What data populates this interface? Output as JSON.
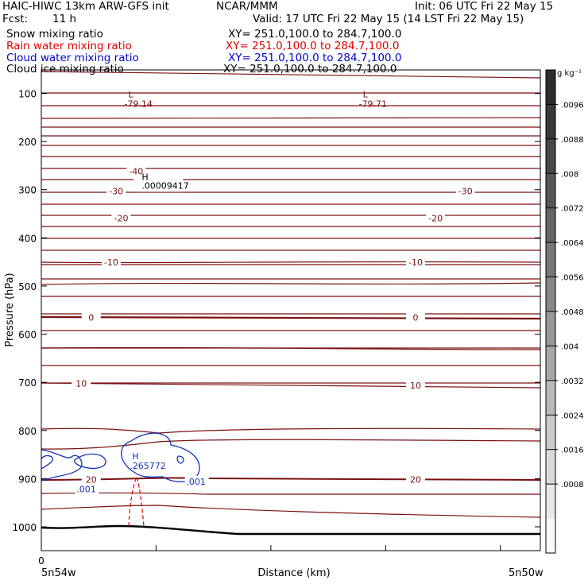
{
  "header": {
    "title": "HAIC-HIWC 13km ARW-GFS init",
    "org": "NCAR/MMM",
    "init": "Init: 06 UTC Fri 22 May 15",
    "fcst_label": "Fcst:",
    "fcst_value": "11 h",
    "valid": "Valid: 17 UTC Fri 22 May 15 (14 LST Fri 22 May 15)"
  },
  "fields": [
    {
      "name": "Snow mixing ratio",
      "xy": "XY= 251.0,100.0 to 284.7,100.0",
      "color": "#000000"
    },
    {
      "name": "Rain water mixing ratio",
      "xy": "XY= 251.0,100.0 to 284.7,100.0",
      "color": "#e00000"
    },
    {
      "name": "Cloud water mixing ratio",
      "xy": "XY= 251.0,100.0 to 284.7,100.0",
      "color": "#0000d0"
    },
    {
      "name": "Cloud ice mixing ratio",
      "xy": "XY= 251.0,100.0 to 284.7,100.0",
      "color": "#000000"
    }
  ],
  "chart_data": {
    "type": "contour",
    "ylabel": "Pressure (hPa)",
    "xlabel": "Distance (km)",
    "x_tick_label": "0",
    "x_left_label": "5n54w",
    "x_right_label": "5n50w",
    "y_ticks": [
      100,
      200,
      300,
      400,
      500,
      600,
      700,
      800,
      900,
      1000
    ],
    "ylim": [
      1050,
      50
    ],
    "temperature_contours": {
      "color": "#7a1010",
      "labels": [
        {
          "text": "-40",
          "x": 0.19,
          "p": 262
        },
        {
          "text": "-30",
          "x": 0.15,
          "p": 303
        },
        {
          "text": "-30",
          "x": 0.85,
          "p": 303
        },
        {
          "text": "-20",
          "x": 0.16,
          "p": 359
        },
        {
          "text": "-20",
          "x": 0.79,
          "p": 359
        },
        {
          "text": "-10",
          "x": 0.14,
          "p": 451
        },
        {
          "text": "-10",
          "x": 0.75,
          "p": 451
        },
        {
          "text": "0",
          "x": 0.1,
          "p": 565
        },
        {
          "text": "0",
          "x": 0.75,
          "p": 565
        },
        {
          "text": "10",
          "x": 0.08,
          "p": 702
        },
        {
          "text": "10",
          "x": 0.75,
          "p": 706
        },
        {
          "text": "20",
          "x": 0.1,
          "p": 902
        },
        {
          "text": "20",
          "x": 0.75,
          "p": 902
        }
      ],
      "lows": [
        {
          "mark": "L",
          "value": "-79.14",
          "x": 0.23,
          "p": 97
        },
        {
          "mark": "L",
          "value": "-79.71",
          "x": 0.7,
          "p": 97
        }
      ]
    },
    "snow_high": {
      "mark": "H",
      "value": ".00009417",
      "x": 0.19,
      "p": 273
    },
    "cloud_water": {
      "color": "#1030c0",
      "contour_value": ".001",
      "labels": [
        {
          "text": ".001",
          "x": 0.09,
          "p": 920
        },
        {
          "text": ".001",
          "x": 0.31,
          "p": 904
        }
      ],
      "high": {
        "mark": "H",
        "value": ".265772",
        "x": 0.19,
        "p": 855
      }
    },
    "rain_water": {
      "color": "#e00000"
    },
    "colorbar": {
      "unit": "g kg⁻¹",
      "ticks": [
        ".0096",
        ".0088",
        ".008",
        ".0072",
        ".0064",
        ".0056",
        ".0048",
        ".004",
        ".0032",
        ".0024",
        ".0016",
        ".0008"
      ],
      "colors": [
        "#2c2c2c",
        "#393939",
        "#474747",
        "#565656",
        "#666666",
        "#767676",
        "#878787",
        "#979797",
        "#a8a8a8",
        "#b9b9b9",
        "#cacaca",
        "#dadada",
        "#e8e8e8",
        "#f8f8f8"
      ]
    }
  }
}
